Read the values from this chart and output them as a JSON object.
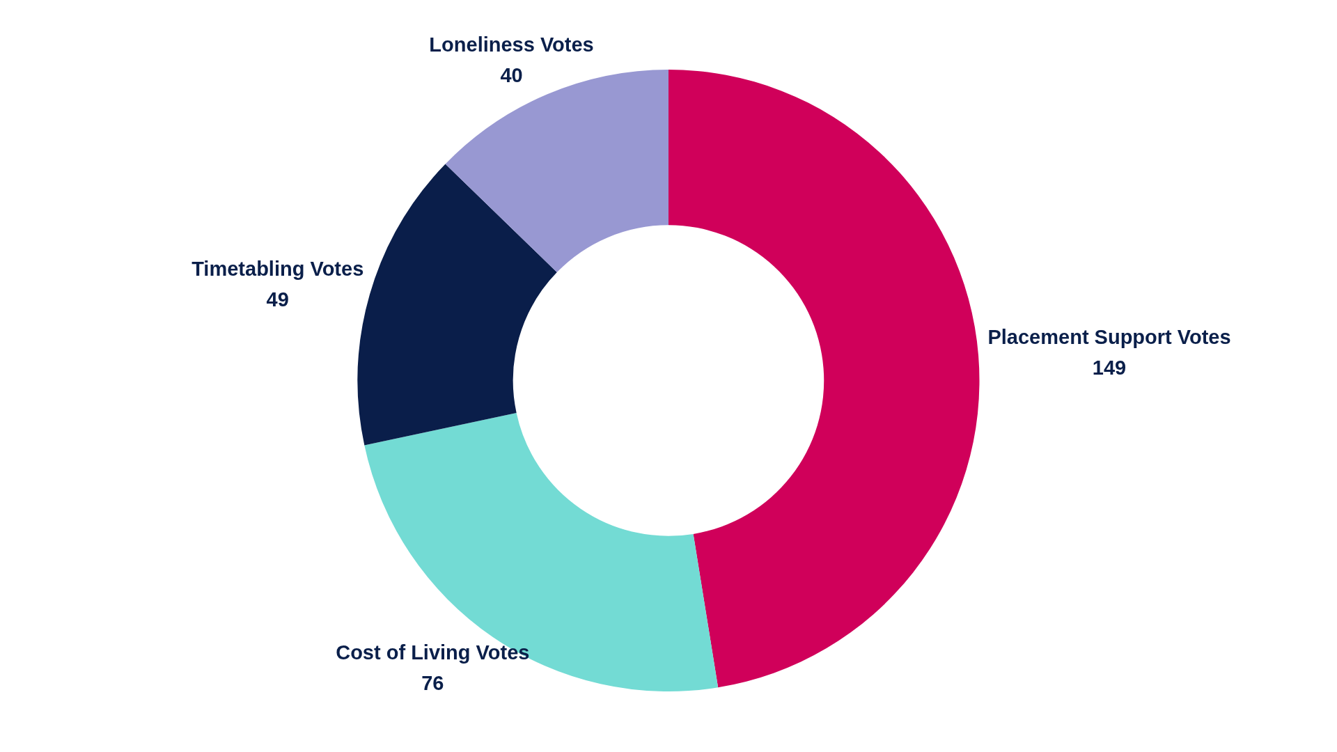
{
  "chart_data": {
    "type": "donut",
    "categories": [
      "Placement Support Votes",
      "Cost of Living Votes",
      "Timetabling Votes",
      "Loneliness Votes"
    ],
    "values": [
      149,
      76,
      49,
      40
    ],
    "colors": [
      "#d0005a",
      "#73dbd4",
      "#0a1e4a",
      "#9898d2"
    ],
    "data_labels": true
  }
}
